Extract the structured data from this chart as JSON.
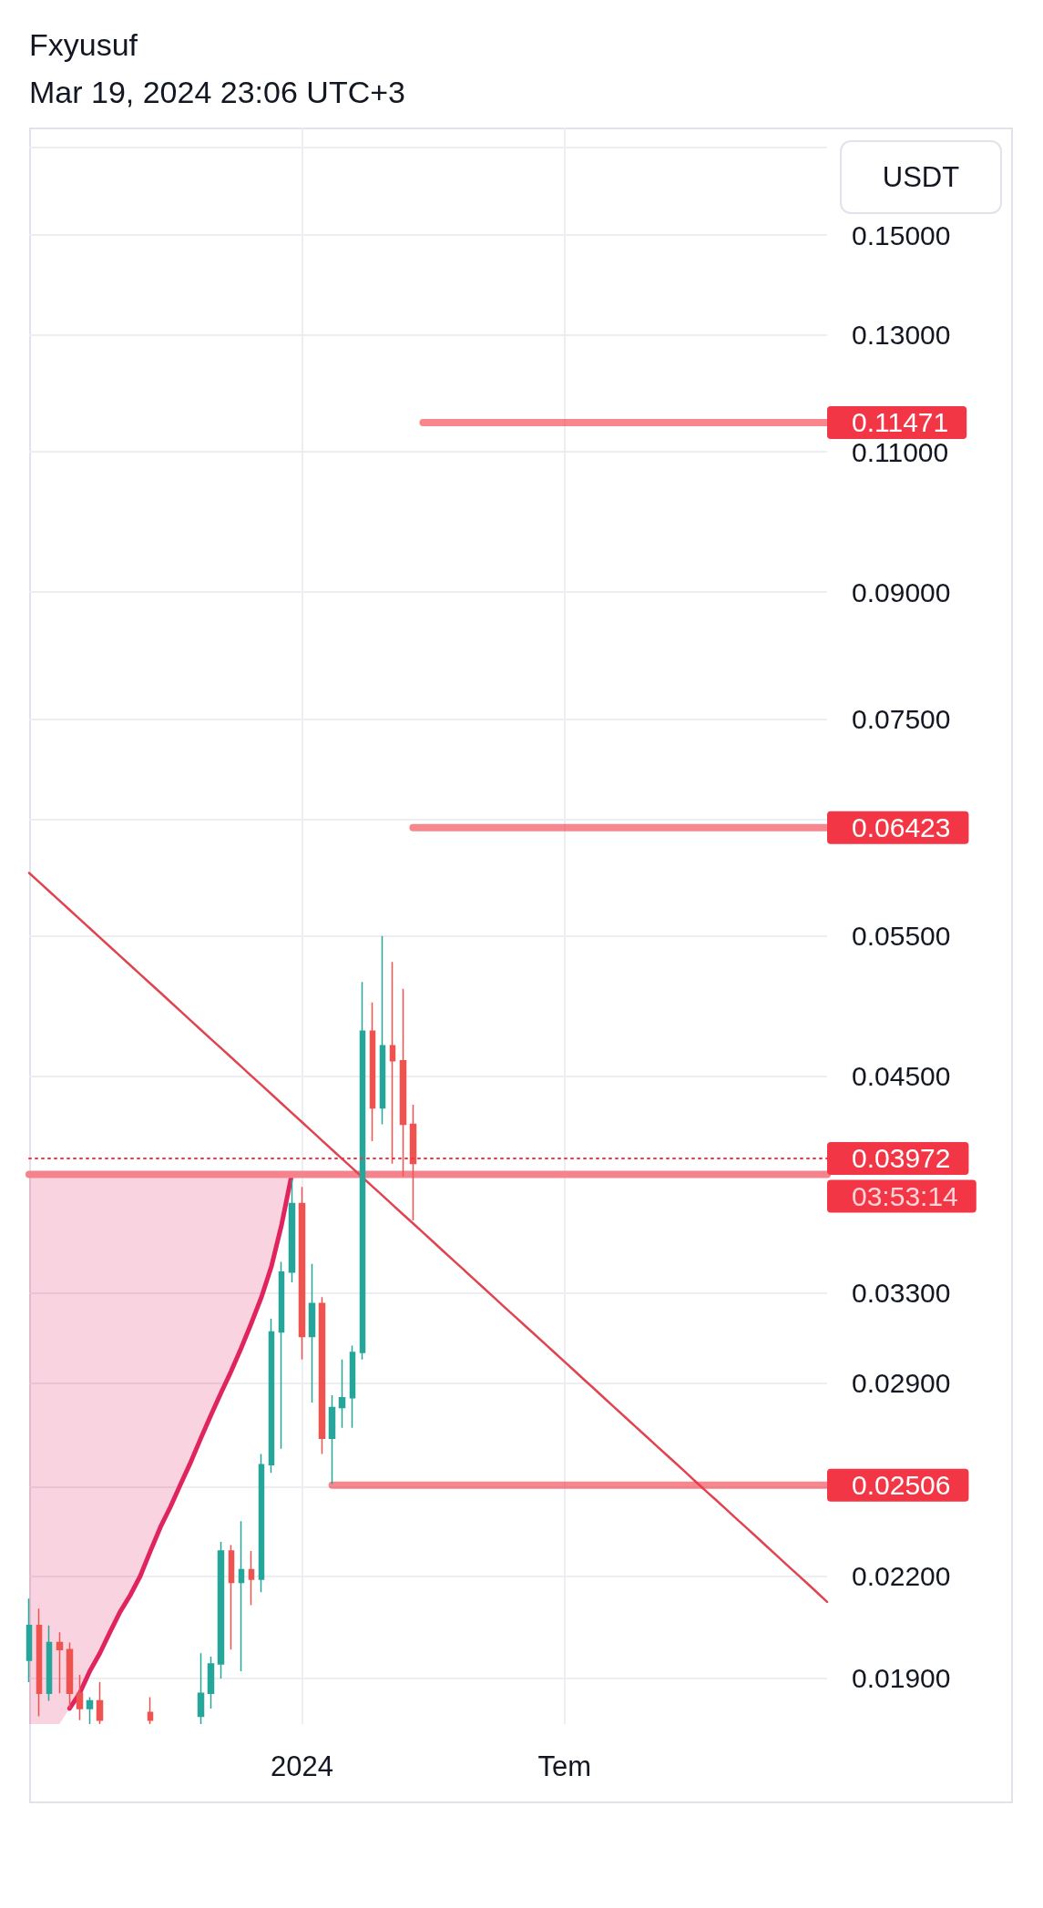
{
  "chart_data": {
    "type": "candlestick",
    "title": "Fxyusuf",
    "subtitle": "Mar 19, 2024 23:06 UTC+3",
    "ylabel": "USDT",
    "log": true,
    "grid": true,
    "categories": [
      null,
      null,
      null,
      null,
      null,
      null,
      null,
      null,
      null,
      null,
      null,
      null,
      null,
      null,
      null,
      null,
      null,
      null,
      null,
      null,
      null,
      null,
      null,
      null,
      null,
      null,
      null,
      "2024",
      null,
      null,
      null,
      null,
      null,
      null,
      null,
      null,
      null,
      null,
      null,
      null,
      null,
      null,
      null,
      null,
      null,
      null,
      null,
      null,
      null,
      null,
      null,
      null,
      null,
      "Tem",
      null,
      null,
      null,
      null,
      null,
      null,
      null,
      null,
      null,
      null,
      null,
      null,
      null,
      null,
      null,
      null,
      null,
      null,
      null,
      null,
      null,
      null,
      null,
      null,
      null,
      null
    ],
    "ylim": [
      0.0178,
      0.175
    ],
    "yticks": [
      {
        "value": 0.17,
        "label": null
      },
      {
        "value": 0.15,
        "label": "0.15000"
      },
      {
        "value": 0.13,
        "label": "0.13000"
      },
      {
        "value": 0.11,
        "label": "0.11000"
      },
      {
        "value": 0.09,
        "label": "0.09000"
      },
      {
        "value": 0.075,
        "label": "0.07500"
      },
      {
        "value": 0.065,
        "label": null
      },
      {
        "value": 0.055,
        "label": "0.05500"
      },
      {
        "value": 0.045,
        "label": "0.04500"
      },
      {
        "value": 0.033,
        "label": "0.03300"
      },
      {
        "value": 0.029,
        "label": "0.02900"
      },
      {
        "value": 0.025,
        "label": null
      },
      {
        "value": 0.022,
        "label": "0.02200"
      },
      {
        "value": 0.019,
        "label": "0.01900"
      }
    ],
    "series": [
      {
        "type": "line",
        "color": "#e0245e",
        "values": [
          null,
          null,
          null,
          null,
          0.0182,
          0.0186,
          0.0192,
          0.0197,
          0.0203,
          0.0209,
          0.0214,
          0.022,
          0.0228,
          0.0236,
          0.0243,
          0.0251,
          0.0259,
          0.0268,
          0.0277,
          0.0286,
          0.0295,
          0.0305,
          0.0316,
          0.0328,
          0.0343,
          0.0364,
          0.0391,
          null,
          null,
          null,
          null,
          null,
          null,
          null,
          null,
          null,
          null,
          null,
          null,
          null,
          null,
          null,
          null,
          null,
          null,
          null,
          null,
          null,
          null,
          null,
          null,
          null,
          null,
          null,
          null,
          null,
          null,
          null,
          null,
          null,
          null,
          null,
          null,
          null,
          null,
          null,
          null,
          null,
          null,
          null,
          null,
          null,
          null,
          null,
          null,
          null,
          null,
          null,
          null,
          null
        ],
        "lower": [
          0.0178,
          0.0178,
          0.0178,
          0.0178,
          0.0182,
          0.0186,
          0.0192,
          0.0197,
          0.0203,
          0.0209,
          0.0214,
          0.022,
          0.0228,
          0.0236,
          0.0243,
          0.0251,
          0.0259,
          0.0268,
          0.0277,
          0.0286,
          0.0295,
          0.0305,
          0.0316,
          0.0328,
          0.0343,
          0.0364,
          0.0391,
          null,
          null,
          null,
          null,
          null,
          null,
          null,
          null,
          null,
          null,
          null,
          null,
          null,
          null,
          null,
          null,
          null,
          null,
          null,
          null,
          null,
          null,
          null,
          null,
          null,
          null,
          null,
          null,
          null,
          null,
          null,
          null,
          null,
          null,
          null,
          null,
          null,
          null,
          null,
          null,
          null,
          null,
          null,
          null,
          null,
          null,
          null,
          null,
          null,
          null,
          null,
          null,
          null
        ],
        "upper": [
          0.0391,
          0.0391,
          0.0391,
          0.0391,
          0.0391,
          0.0391,
          0.0391,
          0.0391,
          0.0391,
          0.0391,
          0.0391,
          0.0391,
          0.0391,
          0.0391,
          0.0391,
          0.0391,
          0.0391,
          0.0391,
          0.0391,
          0.0391,
          0.0391,
          0.0391,
          0.0391,
          0.0391,
          0.0391,
          0.0391,
          0.0391,
          null,
          null,
          null,
          null,
          null,
          null,
          null,
          null,
          null,
          null,
          null,
          null,
          null,
          null,
          null,
          null,
          null,
          null,
          null,
          null,
          null,
          null,
          null,
          null,
          null,
          null,
          null,
          null,
          null,
          null,
          null,
          null,
          null,
          null,
          null,
          null,
          null,
          null,
          null,
          null,
          null,
          null,
          null,
          null,
          null,
          null,
          null,
          null,
          null,
          null,
          null,
          null,
          null
        ]
      },
      {
        "type": "line",
        "color": "#f4838d",
        "values": [
          0.0391,
          0.0391,
          0.0391,
          0.0391,
          0.0391,
          0.0391,
          0.0391,
          0.0391,
          0.0391,
          0.0391,
          0.0391,
          0.0391,
          0.0391,
          0.0391,
          0.0391,
          0.0391,
          0.0391,
          0.0391,
          0.0391,
          0.0391,
          0.0391,
          0.0391,
          0.0391,
          0.0391,
          0.0391,
          0.0391,
          0.0391,
          0.0391,
          0.0391,
          0.0391,
          0.0391,
          0.0391,
          0.0391,
          0.0391,
          0.0391,
          0.0391,
          0.0391,
          0.0391,
          0.0391,
          0.0391,
          0.0391,
          0.0391,
          0.0391,
          0.0391,
          0.0391,
          0.0391,
          0.0391,
          0.0391,
          0.0391,
          0.0391,
          0.0391,
          0.0391,
          0.0391,
          0.0391,
          0.0391,
          0.0391,
          0.0391,
          0.0391,
          0.0391,
          0.0391,
          0.0391,
          0.0391,
          0.0391,
          0.0391,
          0.0391,
          0.0391,
          0.0391,
          0.0391,
          0.0391,
          0.0391,
          0.0391,
          0.0391,
          0.0391,
          0.0391,
          0.0391,
          0.0391,
          0.0391,
          0.0391,
          0.0391,
          0.0391
        ]
      },
      {
        "type": "line",
        "color": "#e04451",
        "values": [
          0.0602,
          0.05941,
          0.05863,
          0.05786,
          0.0571,
          0.05635,
          0.05561,
          0.05488,
          0.05416,
          0.05345,
          0.05275,
          0.05206,
          0.05138,
          0.05071,
          0.05004,
          0.04938,
          0.04873,
          0.04809,
          0.04746,
          0.04684,
          0.04623,
          0.04562,
          0.04502,
          0.04443,
          0.04385,
          0.04327,
          0.0427,
          0.04214,
          0.04159,
          0.04104,
          0.0405,
          0.03997,
          0.03945,
          0.03893,
          0.03842,
          0.03792,
          0.03742,
          0.03693,
          0.03645,
          0.03597,
          0.0355,
          0.03503,
          0.03457,
          0.03412,
          0.03367,
          0.03323,
          0.03279,
          0.03236,
          0.03194,
          0.03152,
          0.03111,
          0.0307,
          0.0303,
          0.0299,
          0.02951,
          0.02912,
          0.02874,
          0.02836,
          0.02799,
          0.02762,
          0.02726,
          0.0269,
          0.02655,
          0.0262,
          0.02586,
          0.02552,
          0.02518,
          0.02485,
          0.02453,
          0.02421,
          0.02389,
          0.02358,
          0.02327,
          0.02296,
          0.02266,
          0.02236,
          0.02207,
          0.02178,
          0.02149,
          0.0212
        ]
      },
      {
        "type": "line",
        "color": "#f23645",
        "values": [
          null,
          null,
          null,
          null,
          null,
          null,
          null,
          null,
          null,
          null,
          null,
          null,
          null,
          null,
          null,
          null,
          null,
          null,
          null,
          null,
          null,
          null,
          null,
          null,
          null,
          null,
          null,
          null,
          null,
          null,
          null,
          null,
          null,
          null,
          null,
          null,
          null,
          null,
          null,
          0.11471,
          0.11471,
          0.11471,
          0.11471,
          0.11471,
          0.11471,
          0.11471,
          0.11471,
          0.11471,
          0.11471,
          0.11471,
          0.11471,
          0.11471,
          0.11471,
          0.11471,
          0.11471,
          0.11471,
          0.11471,
          0.11471,
          0.11471,
          0.11471,
          0.11471,
          0.11471,
          0.11471,
          0.11471,
          0.11471,
          0.11471,
          0.11471,
          0.11471,
          0.11471,
          0.11471,
          0.11471,
          0.11471,
          0.11471,
          0.11471,
          0.11471,
          0.11471,
          0.11471,
          0.11471,
          0.11471,
          0.11471
        ],
        "value_labels": [
          null,
          null,
          null,
          null,
          null,
          null,
          null,
          null,
          null,
          null,
          null,
          null,
          null,
          null,
          null,
          null,
          null,
          null,
          null,
          null,
          null,
          null,
          null,
          null,
          null,
          null,
          null,
          null,
          null,
          null,
          null,
          null,
          null,
          null,
          null,
          null,
          null,
          null,
          null,
          null,
          null,
          null,
          null,
          null,
          null,
          null,
          null,
          null,
          null,
          null,
          null,
          null,
          null,
          null,
          null,
          null,
          null,
          null,
          null,
          null,
          null,
          null,
          null,
          null,
          null,
          null,
          null,
          null,
          null,
          null,
          null,
          null,
          null,
          null,
          null,
          null,
          null,
          null,
          null,
          "0.11471"
        ]
      },
      {
        "type": "line",
        "color": "#f23645",
        "values": [
          null,
          null,
          null,
          null,
          null,
          null,
          null,
          null,
          null,
          null,
          null,
          null,
          null,
          null,
          null,
          null,
          null,
          null,
          null,
          null,
          null,
          null,
          null,
          null,
          null,
          null,
          null,
          null,
          null,
          null,
          null,
          null,
          null,
          null,
          null,
          null,
          null,
          null,
          0.06423,
          0.06423,
          0.06423,
          0.06423,
          0.06423,
          0.06423,
          0.06423,
          0.06423,
          0.06423,
          0.06423,
          0.06423,
          0.06423,
          0.06423,
          0.06423,
          0.06423,
          0.06423,
          0.06423,
          0.06423,
          0.06423,
          0.06423,
          0.06423,
          0.06423,
          0.06423,
          0.06423,
          0.06423,
          0.06423,
          0.06423,
          0.06423,
          0.06423,
          0.06423,
          0.06423,
          0.06423,
          0.06423,
          0.06423,
          0.06423,
          0.06423,
          0.06423,
          0.06423,
          0.06423,
          0.06423,
          0.06423,
          0.06423
        ],
        "value_labels": [
          null,
          null,
          null,
          null,
          null,
          null,
          null,
          null,
          null,
          null,
          null,
          null,
          null,
          null,
          null,
          null,
          null,
          null,
          null,
          null,
          null,
          null,
          null,
          null,
          null,
          null,
          null,
          null,
          null,
          null,
          null,
          null,
          null,
          null,
          null,
          null,
          null,
          null,
          null,
          null,
          null,
          null,
          null,
          null,
          null,
          null,
          null,
          null,
          null,
          null,
          null,
          null,
          null,
          null,
          null,
          null,
          null,
          null,
          null,
          null,
          null,
          null,
          null,
          null,
          null,
          null,
          null,
          null,
          null,
          null,
          null,
          null,
          null,
          null,
          null,
          null,
          null,
          null,
          null,
          "0.06423"
        ]
      },
      {
        "type": "line",
        "color": "#f23645",
        "values": [
          null,
          null,
          null,
          null,
          null,
          null,
          null,
          null,
          null,
          null,
          null,
          null,
          null,
          null,
          null,
          null,
          null,
          null,
          null,
          null,
          null,
          null,
          null,
          null,
          null,
          null,
          null,
          null,
          null,
          null,
          0.02506,
          0.02506,
          0.02506,
          0.02506,
          0.02506,
          0.02506,
          0.02506,
          0.02506,
          0.02506,
          0.02506,
          0.02506,
          0.02506,
          0.02506,
          0.02506,
          0.02506,
          0.02506,
          0.02506,
          0.02506,
          0.02506,
          0.02506,
          0.02506,
          0.02506,
          0.02506,
          0.02506,
          0.02506,
          0.02506,
          0.02506,
          0.02506,
          0.02506,
          0.02506,
          0.02506,
          0.02506,
          0.02506,
          0.02506,
          0.02506,
          0.02506,
          0.02506,
          0.02506,
          0.02506,
          0.02506,
          0.02506,
          0.02506,
          0.02506,
          0.02506,
          0.02506,
          0.02506,
          0.02506,
          0.02506,
          0.02506,
          0.02506
        ],
        "value_labels": [
          null,
          null,
          null,
          null,
          null,
          null,
          null,
          null,
          null,
          null,
          null,
          null,
          null,
          null,
          null,
          null,
          null,
          null,
          null,
          null,
          null,
          null,
          null,
          null,
          null,
          null,
          null,
          null,
          null,
          null,
          null,
          null,
          null,
          null,
          null,
          null,
          null,
          null,
          null,
          null,
          null,
          null,
          null,
          null,
          null,
          null,
          null,
          null,
          null,
          null,
          null,
          null,
          null,
          null,
          null,
          null,
          null,
          null,
          null,
          null,
          null,
          null,
          null,
          null,
          null,
          null,
          null,
          null,
          null,
          null,
          null,
          null,
          null,
          null,
          null,
          null,
          null,
          null,
          null,
          "0.02506"
        ]
      },
      {
        "ohlc": [
          [
            0.0195,
            0.0213,
            0.0189,
            0.0205
          ],
          [
            0.0205,
            0.021,
            0.018,
            0.0186
          ],
          [
            0.0186,
            0.0205,
            0.0184,
            0.02
          ],
          [
            0.02,
            0.0203,
            0.0186,
            0.0198
          ],
          [
            0.0198,
            0.02,
            0.0182,
            0.0186
          ],
          [
            0.0186,
            0.0191,
            0.0179,
            0.0182
          ],
          [
            0.0182,
            0.0185,
            0.0178,
            0.0184
          ],
          [
            0.0184,
            0.0189,
            0.0178,
            0.0179
          ],
          null,
          null,
          null,
          null,
          [
            0.0181,
            0.0185,
            0.0178,
            0.0179
          ],
          null,
          null,
          null,
          null,
          [
            0.018,
            0.0197,
            0.0178,
            0.0186
          ],
          [
            0.0186,
            0.0196,
            0.0182,
            0.0194
          ],
          [
            0.0194,
            0.0231,
            0.019,
            0.0228
          ],
          [
            0.0228,
            0.023,
            0.0198,
            0.0218
          ],
          [
            0.0218,
            0.0238,
            0.0192,
            0.0222
          ],
          [
            0.0222,
            0.0228,
            0.0211,
            0.0219
          ],
          [
            0.0219,
            0.0262,
            0.0215,
            0.0258
          ],
          [
            0.0258,
            0.0318,
            0.0255,
            0.0312
          ],
          [
            0.0312,
            0.0345,
            0.0264,
            0.034
          ],
          [
            0.034,
            0.0388,
            0.0335,
            0.0375
          ],
          [
            0.0375,
            0.0384,
            0.03,
            0.031
          ],
          [
            0.031,
            0.0344,
            0.0282,
            0.0325
          ],
          [
            0.0325,
            0.0328,
            0.0262,
            0.0268
          ],
          [
            0.0268,
            0.0285,
            0.0251,
            0.028
          ],
          [
            0.028,
            0.03,
            0.0272,
            0.0284
          ],
          [
            0.0284,
            0.0306,
            0.0272,
            0.0303
          ],
          [
            0.0303,
            0.0515,
            0.03,
            0.048
          ],
          [
            0.048,
            0.05,
            0.041,
            0.043
          ],
          [
            0.043,
            0.055,
            0.042,
            0.047
          ],
          [
            0.047,
            0.053,
            0.0397,
            0.046
          ],
          [
            0.046,
            0.051,
            0.039,
            0.042
          ],
          [
            0.042,
            0.0432,
            0.0366,
            0.03972
          ],
          null,
          null,
          null,
          null,
          null,
          null,
          null,
          null,
          null,
          null,
          null,
          null,
          null,
          null,
          null,
          null,
          null,
          null,
          null,
          null,
          null,
          null,
          null,
          null,
          null,
          null,
          null,
          null,
          null,
          null,
          null,
          null,
          null,
          null,
          null,
          null,
          null,
          null,
          null,
          null,
          null
        ],
        "colors": [
          "#26a69a",
          "#ef5350",
          "#26a69a",
          "#ef5350",
          "#ef5350",
          "#ef5350",
          "#26a69a",
          "#ef5350",
          null,
          null,
          null,
          null,
          "#ef5350",
          null,
          null,
          null,
          null,
          "#26a69a",
          "#26a69a",
          "#26a69a",
          "#ef5350",
          "#26a69a",
          "#ef5350",
          "#26a69a",
          "#26a69a",
          "#26a69a",
          "#26a69a",
          "#ef5350",
          "#26a69a",
          "#ef5350",
          "#26a69a",
          "#26a69a",
          "#26a69a",
          "#26a69a",
          "#ef5350",
          "#26a69a",
          "#ef5350",
          "#ef5350",
          "#ef5350",
          null,
          null,
          null,
          null,
          null,
          null,
          null,
          null,
          null,
          null,
          null,
          null,
          null,
          null,
          null,
          null,
          null,
          null,
          null,
          null,
          null,
          null,
          null,
          null,
          null,
          null,
          null,
          null,
          null,
          null,
          null,
          null,
          null,
          null,
          null,
          null,
          null,
          null,
          null,
          null,
          null
        ]
      }
    ],
    "ref_lines": [
      {
        "axis": "y",
        "value": 0.03972,
        "label": "0.03972",
        "color": "#f23645",
        "line_style": "dotted"
      }
    ],
    "annotations": [
      "03:53:14"
    ]
  }
}
